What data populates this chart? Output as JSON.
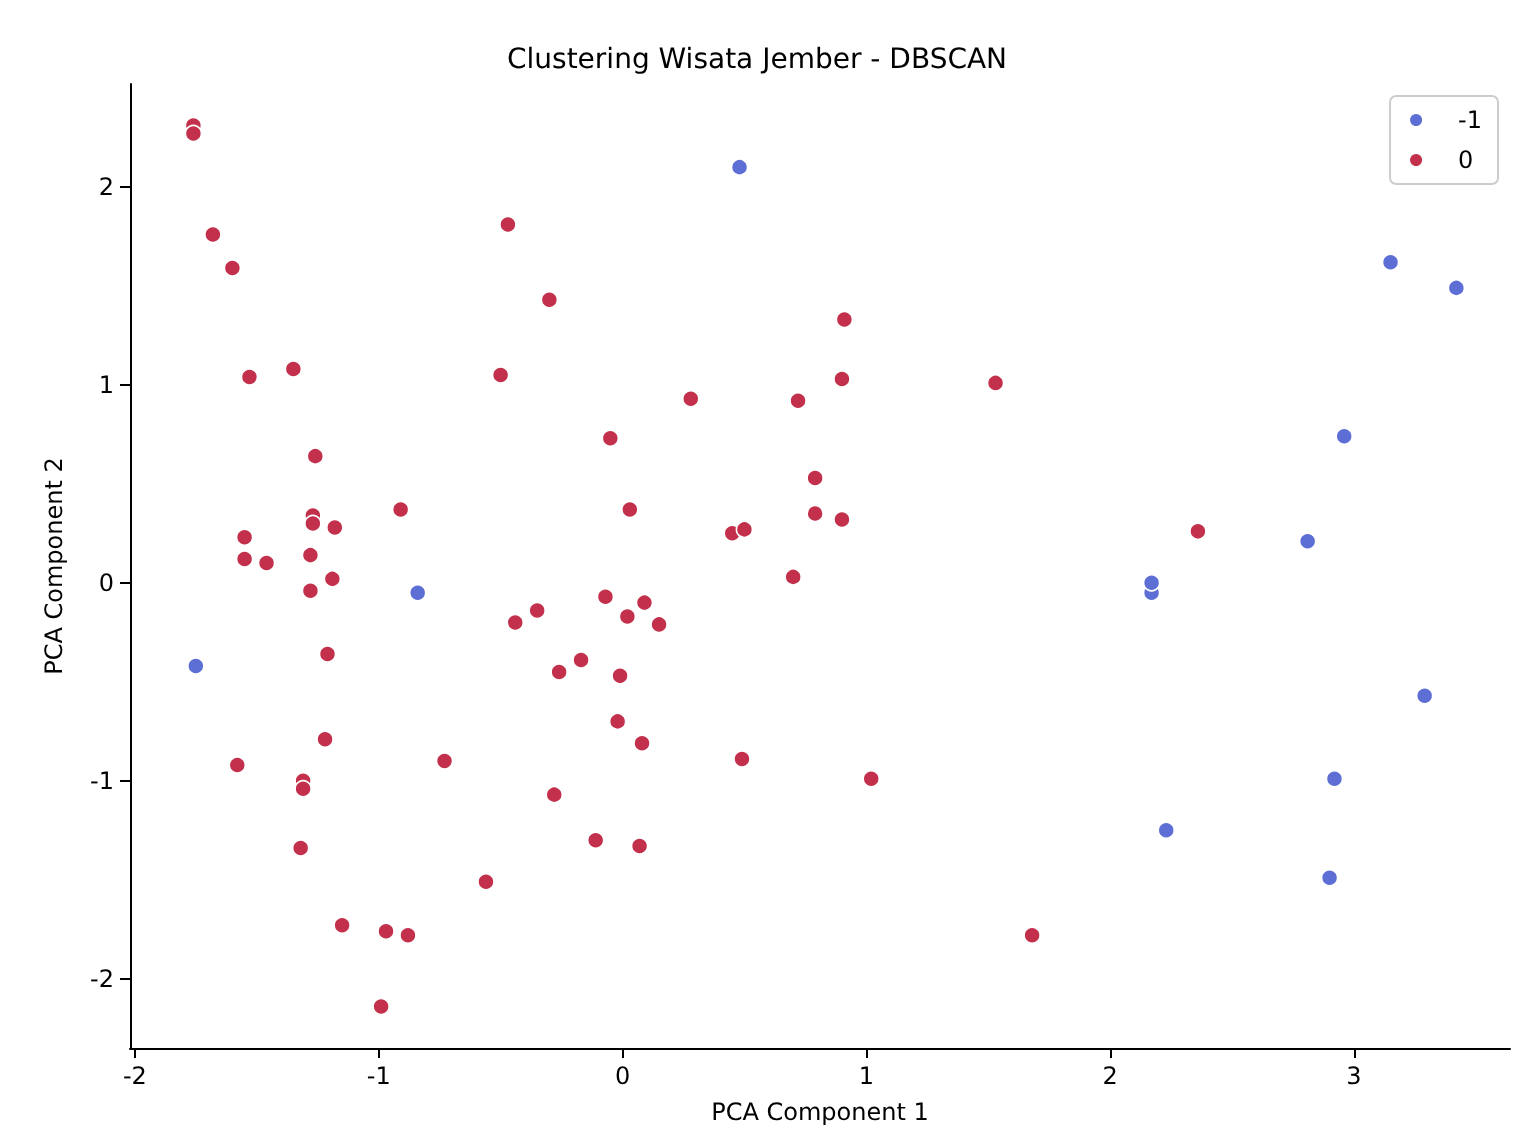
{
  "chart_data": {
    "type": "scatter",
    "title": "Clustering Wisata Jember - DBSCAN",
    "xlabel": "PCA Component 1",
    "ylabel": "PCA Component 2",
    "xlim": [
      -2.02,
      3.64
    ],
    "ylim": [
      -2.35,
      2.52
    ],
    "xticks": [
      -2,
      -1,
      0,
      1,
      2,
      3
    ],
    "yticks": [
      -2,
      -1,
      0,
      1,
      2
    ],
    "grid": false,
    "legend": "top right",
    "marker": "circle",
    "series": [
      {
        "name": "-1",
        "color": "#5d6fd4",
        "x": [
          0.48,
          -1.75,
          -0.84,
          2.17,
          2.17,
          2.23,
          3.15,
          3.42,
          2.96,
          2.81,
          3.29,
          2.92,
          2.9
        ],
        "values": [
          2.1,
          -0.42,
          -0.05,
          -0.05,
          0.0,
          -1.25,
          1.62,
          1.49,
          0.74,
          0.21,
          -0.57,
          -0.99,
          -1.49
        ]
      },
      {
        "name": "0",
        "color": "#c3304c",
        "x": [
          -1.76,
          -1.76,
          -1.68,
          -1.6,
          -1.53,
          -1.35,
          -1.26,
          -1.27,
          -1.27,
          -1.18,
          -1.55,
          -1.55,
          -1.46,
          -1.28,
          -1.19,
          -1.28,
          -1.21,
          -1.22,
          -1.58,
          -1.31,
          -1.31,
          -1.32,
          -1.15,
          -0.97,
          -0.88,
          -0.99,
          -0.91,
          -0.47,
          -0.3,
          -0.5,
          -0.73,
          -0.56,
          -0.44,
          -0.35,
          -0.26,
          -0.28,
          -0.17,
          -0.07,
          -0.05,
          0.03,
          0.02,
          -0.01,
          -0.02,
          0.09,
          0.15,
          0.08,
          -0.11,
          0.07,
          0.28,
          0.45,
          0.5,
          0.49,
          0.7,
          0.72,
          0.79,
          0.79,
          0.9,
          0.91,
          0.9,
          1.02,
          1.53,
          1.68,
          2.36
        ],
        "values": [
          2.31,
          2.27,
          1.76,
          1.59,
          1.04,
          1.08,
          0.64,
          0.34,
          0.3,
          0.28,
          0.23,
          0.12,
          0.1,
          0.14,
          0.02,
          -0.04,
          -0.36,
          -0.79,
          -0.92,
          -1.0,
          -1.04,
          -1.34,
          -1.73,
          -1.76,
          -1.78,
          -2.14,
          0.37,
          1.81,
          1.43,
          1.05,
          -0.9,
          -1.51,
          -0.2,
          -0.14,
          -0.45,
          -1.07,
          -0.39,
          -0.07,
          0.73,
          0.37,
          -0.17,
          -0.47,
          -0.7,
          -0.1,
          -0.21,
          -0.81,
          -1.3,
          -1.33,
          0.93,
          0.25,
          0.27,
          -0.89,
          0.03,
          0.92,
          0.53,
          0.35,
          0.32,
          1.33,
          1.03,
          -0.99,
          1.01,
          -1.78,
          0.26
        ]
      }
    ]
  }
}
